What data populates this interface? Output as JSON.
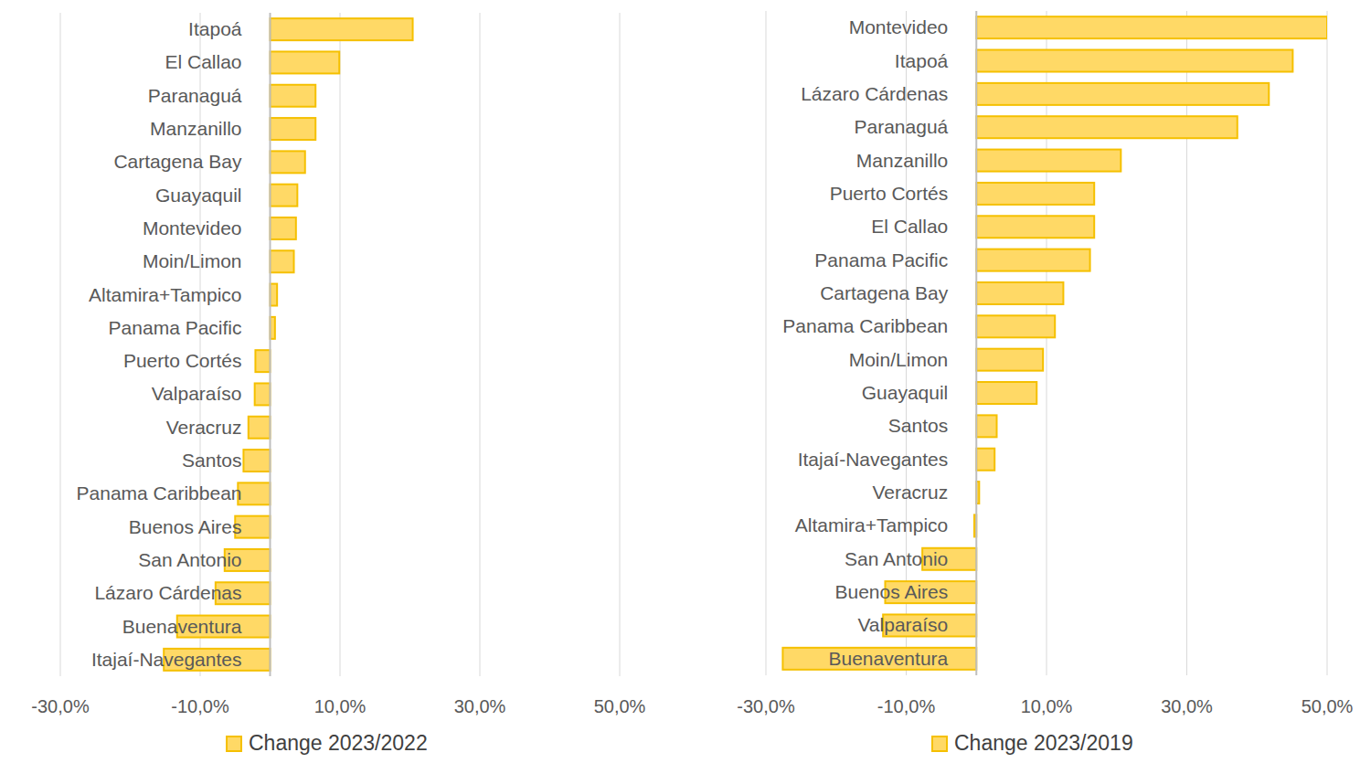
{
  "chart_data": [
    {
      "type": "bar",
      "orientation": "horizontal",
      "grid": true,
      "legend": "bottom",
      "categories": [
        "Itapoá",
        "El Callao",
        "Paranaguá",
        "Manzanillo",
        "Cartagena Bay",
        "Guayaquil",
        "Montevideo",
        "Moin/Limon",
        "Altamira+Tampico",
        "Panama Pacific",
        "Puerto Cortés",
        "Valparaíso",
        "Veracruz",
        "Santos",
        "Panama Caribbean",
        "Buenos Aires",
        "San Antonio",
        "Lázaro Cárdenas",
        "Buenaventura",
        "Itajaí-Navegantes"
      ],
      "series": [
        {
          "name": "Change 2023/2022",
          "color": "#ffd966",
          "values": [
            20.4,
            9.9,
            6.5,
            6.5,
            5.0,
            3.9,
            3.7,
            3.4,
            1.0,
            0.7,
            -2.1,
            -2.2,
            -3.1,
            -3.8,
            -4.6,
            -5.0,
            -6.5,
            -7.8,
            -13.3,
            -15.2
          ]
        }
      ],
      "xlim": [
        -30,
        50
      ],
      "xticks": [
        {
          "value": -30,
          "label": "-30,0%"
        },
        {
          "value": -10,
          "label": "-10,0%"
        },
        {
          "value": 10,
          "label": "10,0%"
        },
        {
          "value": 30,
          "label": "30,0%"
        },
        {
          "value": 50,
          "label": "50,0%"
        }
      ]
    },
    {
      "type": "bar",
      "orientation": "horizontal",
      "grid": true,
      "legend": "bottom",
      "categories": [
        "Montevideo",
        "Itapoá",
        "Lázaro Cárdenas",
        "Paranaguá",
        "Manzanillo",
        "Puerto Cortés",
        "El Callao",
        "Panama Pacific",
        "Cartagena Bay",
        "Panama Caribbean",
        "Moin/Limon",
        "Guayaquil",
        "Santos",
        "Itajaí-Navegantes",
        "Veracruz",
        "Altamira+Tampico",
        "San Antonio",
        "Buenos Aires",
        "Valparaíso",
        "Buenaventura"
      ],
      "series": [
        {
          "name": "Change 2023/2019",
          "color": "#ffd966",
          "values": [
            50.0,
            45.1,
            41.7,
            37.2,
            20.6,
            16.8,
            16.8,
            16.2,
            12.4,
            11.2,
            9.5,
            8.6,
            2.9,
            2.6,
            0.4,
            -0.3,
            -7.7,
            -13.0,
            -13.3,
            -27.6
          ]
        }
      ],
      "xlim": [
        -30,
        50
      ],
      "xticks": [
        {
          "value": -30,
          "label": "-30,0%"
        },
        {
          "value": -10,
          "label": "-10,0%"
        },
        {
          "value": 10,
          "label": "10,0%"
        },
        {
          "value": 30,
          "label": "30,0%"
        },
        {
          "value": 50,
          "label": "50,0%"
        }
      ]
    }
  ]
}
